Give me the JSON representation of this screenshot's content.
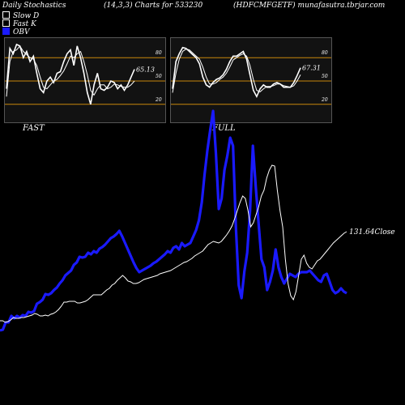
{
  "header": {
    "left": "Daily Stochastics",
    "middle": "(14,3,3) Charts for 533230",
    "right": "(HDFCMFGETF) munafasutra.tbrjar.com"
  },
  "legend": [
    {
      "label": "Slow  D",
      "kind": "box"
    },
    {
      "label": "Fast K",
      "kind": "box"
    },
    {
      "label": "OBV",
      "kind": "obv"
    }
  ],
  "colors": {
    "obv": "#1a1aff",
    "price": "#ffffff",
    "levels": "#c8860a",
    "panel_bg": "#121212"
  },
  "panels": [
    {
      "name": "FAST",
      "last_value": "65.13",
      "levels": [
        "80",
        "50",
        "20"
      ],
      "level_values": [
        80,
        50,
        20
      ],
      "k": [
        40,
        92,
        85,
        97,
        95,
        80,
        88,
        75,
        82,
        60,
        40,
        35,
        50,
        55,
        48,
        60,
        62,
        75,
        85,
        90,
        70,
        95,
        80,
        60,
        35,
        20,
        45,
        60,
        40,
        38,
        42,
        50,
        48,
        40,
        45,
        38,
        45,
        55,
        65
      ],
      "d": [
        30,
        75,
        88,
        90,
        95,
        88,
        84,
        80,
        78,
        70,
        55,
        42,
        40,
        45,
        50,
        52,
        57,
        63,
        72,
        82,
        80,
        85,
        88,
        75,
        58,
        38,
        32,
        40,
        45,
        45,
        40,
        42,
        46,
        45,
        43,
        42,
        42,
        45,
        50
      ]
    },
    {
      "name": "FULL",
      "last_value": "67.31",
      "levels": [
        "80",
        "50",
        "20"
      ],
      "level_values": [
        80,
        50,
        20
      ],
      "k": [
        40,
        75,
        85,
        93,
        92,
        88,
        84,
        80,
        72,
        55,
        45,
        42,
        48,
        52,
        54,
        58,
        65,
        75,
        82,
        82,
        85,
        88,
        78,
        58,
        38,
        30,
        40,
        45,
        42,
        42,
        46,
        48,
        46,
        42,
        42,
        42,
        48,
        57,
        67
      ],
      "d": [
        35,
        60,
        78,
        88,
        91,
        90,
        86,
        82,
        78,
        68,
        55,
        46,
        46,
        48,
        52,
        55,
        60,
        68,
        77,
        80,
        83,
        85,
        82,
        70,
        52,
        38,
        36,
        40,
        43,
        43,
        44,
        46,
        46,
        44,
        43,
        42,
        44,
        50,
        58
      ]
    }
  ],
  "chart_data": {
    "type": "line",
    "title": "Daily Stochastics (14,3,3) Charts for 533230 (HDFCMFGETF)",
    "series": [
      {
        "name": "OBV",
        "values": [
          12,
          13,
          22,
          22,
          30,
          27,
          30,
          28,
          31,
          30,
          35,
          34,
          36,
          45,
          47,
          50,
          57,
          56,
          58,
          62,
          65,
          70,
          74,
          80,
          83,
          86,
          93,
          96,
          103,
          102,
          103,
          108,
          106,
          110,
          108,
          113,
          115,
          118,
          122,
          126,
          128,
          131,
          135,
          128,
          120,
          112,
          104,
          96,
          89,
          84,
          86,
          88,
          90,
          92,
          95,
          97,
          100,
          103,
          106,
          110,
          108,
          114,
          116,
          112,
          120,
          116,
          118,
          120,
          128,
          136,
          148,
          170,
          205,
          235,
          260,
          283,
          230,
          162,
          175,
          210,
          228,
          250,
          240,
          140,
          68,
          52,
          85,
          108,
          160,
          240,
          190,
          145,
          100,
          90,
          62,
          72,
          86,
          112,
          90,
          78,
          70,
          76,
          82,
          80,
          78,
          82,
          84,
          84,
          84,
          86,
          82,
          78,
          74,
          72,
          80,
          82,
          72,
          62,
          58,
          60,
          64,
          60,
          58
        ]
      },
      {
        "name": "Price",
        "last_label": "131.64Close",
        "values": [
          24,
          24,
          22,
          23,
          25,
          28,
          27,
          27,
          28,
          28,
          29,
          30,
          31,
          33,
          32,
          30,
          30,
          31,
          30,
          32,
          33,
          35,
          38,
          42,
          47,
          47,
          48,
          48,
          48,
          46,
          46,
          47,
          48,
          50,
          53,
          56,
          56,
          56,
          56,
          59,
          62,
          64,
          68,
          70,
          74,
          77,
          80,
          77,
          73,
          72,
          70,
          70,
          71,
          73,
          75,
          76,
          77,
          78,
          79,
          80,
          82,
          83,
          84,
          85,
          86,
          88,
          90,
          92,
          94,
          96,
          97,
          99,
          101,
          104,
          106,
          108,
          110,
          114,
          118,
          120,
          122,
          121,
          120,
          122,
          126,
          130,
          135,
          141,
          150,
          160,
          170,
          178,
          175,
          160,
          140,
          145,
          155,
          165,
          178,
          185,
          200,
          210,
          216,
          215,
          185,
          160,
          140,
          100,
          70,
          55,
          50,
          60,
          80,
          100,
          105,
          95,
          90,
          88,
          93,
          98,
          100,
          104,
          108,
          112,
          116,
          120,
          123,
          126,
          129,
          132,
          134
        ]
      }
    ]
  }
}
